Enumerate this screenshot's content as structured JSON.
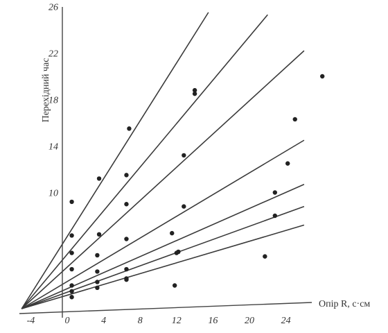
{
  "chart_data": {
    "type": "scatter",
    "xlabel": "Опір R, с·см",
    "ylabel": "Перехідний час",
    "xlim": [
      -4,
      28
    ],
    "ylim": [
      0,
      26
    ],
    "x_ticks": [
      "-4",
      "0",
      "4",
      "8",
      "12",
      "16",
      "20",
      "24"
    ],
    "y_ticks": [
      "10",
      "14",
      "18",
      "22",
      "26"
    ],
    "grid": false,
    "legend": "none",
    "lines_through": [
      -5,
      0
    ],
    "series": [
      {
        "points": [
          [
            0.5,
            9.2
          ],
          [
            3.5,
            11.2
          ],
          [
            6.8,
            15.5
          ]
        ],
        "line_end": [
          15.5,
          25.5
        ]
      },
      {
        "points": [
          [
            0.5,
            6.3
          ],
          [
            6.5,
            11.5
          ],
          [
            14.0,
            18.5
          ],
          [
            14.0,
            18.8
          ]
        ],
        "line_end": [
          22,
          25.3
        ]
      },
      {
        "points": [
          [
            0.5,
            4.8
          ],
          [
            3.5,
            6.4
          ],
          [
            6.5,
            9.0
          ],
          [
            12.8,
            13.2
          ]
        ],
        "line_end": [
          26,
          22.2
        ]
      },
      {
        "points": [
          [
            0.5,
            3.4
          ],
          [
            3.3,
            4.6
          ],
          [
            6.5,
            6.0
          ],
          [
            12.8,
            8.8
          ]
        ],
        "line_end": [
          26,
          14.5
        ]
      },
      {
        "points": [
          [
            0.5,
            2.0
          ],
          [
            3.3,
            3.2
          ],
          [
            6.5,
            3.4
          ],
          [
            12.2,
            4.9
          ],
          [
            22.8,
            10.0
          ]
        ],
        "line_end": [
          26,
          10.7
        ]
      },
      {
        "points": [
          [
            0.5,
            1.5
          ],
          [
            3.3,
            2.3
          ],
          [
            6.5,
            2.6
          ],
          [
            12.0,
            4.8
          ],
          [
            22.8,
            8.0
          ]
        ],
        "line_end": [
          26,
          8.8
        ]
      },
      {
        "points": [
          [
            0.5,
            1.0
          ],
          [
            3.3,
            1.8
          ],
          [
            6.5,
            2.5
          ],
          [
            11.5,
            6.5
          ]
        ],
        "line_end": [
          26,
          7.2
        ]
      }
    ],
    "extra_points": [
      [
        21.7,
        4.5
      ],
      [
        24.2,
        12.5
      ],
      [
        25.0,
        16.3
      ],
      [
        28.0,
        20.0
      ],
      [
        11.8,
        2.0
      ]
    ]
  }
}
